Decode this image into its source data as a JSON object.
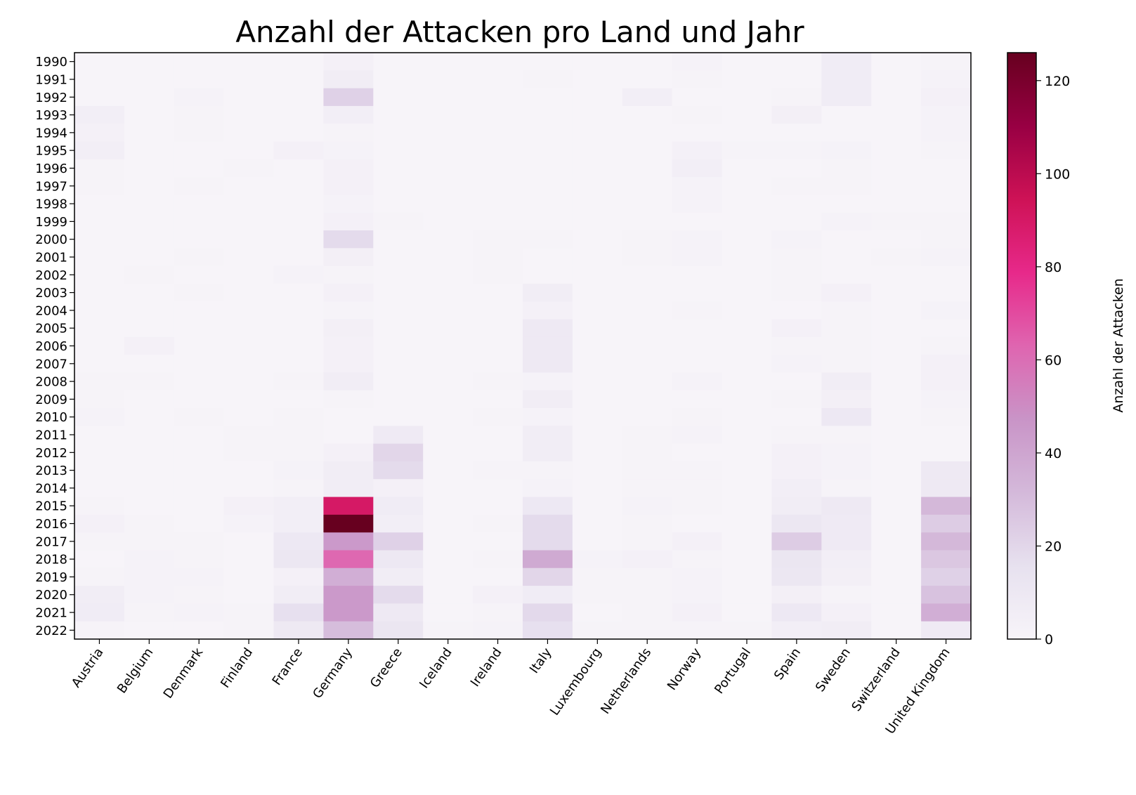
{
  "chart_data": {
    "type": "heatmap",
    "title": "Anzahl der Attacken pro Land und Jahr",
    "x_categories": [
      "Austria",
      "Belgium",
      "Denmark",
      "Finland",
      "France",
      "Germany",
      "Greece",
      "Iceland",
      "Ireland",
      "Italy",
      "Luxembourg",
      "Netherlands",
      "Norway",
      "Portugal",
      "Spain",
      "Sweden",
      "Switzerland",
      "United Kingdom"
    ],
    "y_categories": [
      "1990",
      "1991",
      "1992",
      "1993",
      "1994",
      "1995",
      "1996",
      "1997",
      "1998",
      "1999",
      "2000",
      "2001",
      "2002",
      "2003",
      "2004",
      "2005",
      "2006",
      "2007",
      "2008",
      "2009",
      "2010",
      "2011",
      "2012",
      "2013",
      "2014",
      "2015",
      "2016",
      "2017",
      "2018",
      "2019",
      "2020",
      "2021",
      "2022"
    ],
    "values": [
      [
        0,
        0,
        0,
        0,
        0,
        3,
        0,
        0,
        0,
        0,
        0,
        0,
        2,
        0,
        0,
        7,
        0,
        1
      ],
      [
        0,
        0,
        0,
        0,
        0,
        6,
        0,
        0,
        0,
        1,
        0,
        0,
        1,
        0,
        0,
        7,
        0,
        2
      ],
      [
        0,
        0,
        2,
        0,
        0,
        22,
        0,
        0,
        0,
        0,
        0,
        5,
        0,
        0,
        1,
        7,
        0,
        3
      ],
      [
        5,
        0,
        1,
        0,
        0,
        5,
        0,
        0,
        0,
        0,
        0,
        0,
        1,
        0,
        4,
        0,
        0,
        2
      ],
      [
        3,
        0,
        1,
        0,
        0,
        1,
        0,
        0,
        0,
        0,
        0,
        0,
        0,
        0,
        0,
        0,
        0,
        2
      ],
      [
        5,
        0,
        0,
        0,
        3,
        2,
        0,
        0,
        0,
        0,
        0,
        0,
        3,
        1,
        1,
        2,
        0,
        1
      ],
      [
        1,
        0,
        0,
        1,
        0,
        3,
        0,
        0,
        0,
        0,
        0,
        0,
        5,
        0,
        0,
        1,
        0,
        0
      ],
      [
        1,
        0,
        1,
        0,
        0,
        3,
        0,
        0,
        0,
        0,
        0,
        0,
        2,
        0,
        1,
        1,
        0,
        0
      ],
      [
        0,
        0,
        0,
        0,
        0,
        2,
        0,
        0,
        0,
        0,
        0,
        0,
        2,
        0,
        0,
        0,
        0,
        0
      ],
      [
        0,
        0,
        0,
        0,
        0,
        3,
        1,
        0,
        0,
        0,
        0,
        0,
        0,
        0,
        0,
        2,
        1,
        1
      ],
      [
        0,
        0,
        0,
        0,
        0,
        18,
        0,
        0,
        1,
        1,
        0,
        1,
        2,
        0,
        2,
        0,
        0,
        1
      ],
      [
        0,
        0,
        1,
        0,
        0,
        4,
        0,
        0,
        1,
        0,
        0,
        1,
        2,
        0,
        1,
        0,
        1,
        2
      ],
      [
        0,
        1,
        0,
        0,
        2,
        1,
        0,
        0,
        1,
        0,
        0,
        0,
        0,
        0,
        1,
        0,
        0,
        0
      ],
      [
        0,
        0,
        1,
        0,
        0,
        3,
        0,
        0,
        0,
        6,
        0,
        0,
        0,
        0,
        1,
        3,
        0,
        0
      ],
      [
        0,
        0,
        0,
        0,
        0,
        1,
        0,
        0,
        0,
        3,
        0,
        0,
        1,
        0,
        0,
        1,
        0,
        2
      ],
      [
        0,
        0,
        0,
        0,
        0,
        4,
        0,
        0,
        0,
        9,
        0,
        0,
        0,
        0,
        3,
        1,
        0,
        0
      ],
      [
        0,
        3,
        0,
        0,
        0,
        3,
        0,
        0,
        0,
        9,
        0,
        0,
        0,
        0,
        1,
        1,
        0,
        1
      ],
      [
        0,
        0,
        0,
        0,
        0,
        3,
        0,
        0,
        0,
        9,
        0,
        0,
        0,
        0,
        2,
        1,
        0,
        3
      ],
      [
        1,
        1,
        0,
        0,
        1,
        6,
        0,
        0,
        1,
        2,
        0,
        0,
        2,
        0,
        0,
        6,
        0,
        3
      ],
      [
        1,
        0,
        0,
        0,
        0,
        1,
        0,
        0,
        0,
        6,
        0,
        0,
        0,
        0,
        1,
        4,
        0,
        2
      ],
      [
        2,
        0,
        1,
        0,
        1,
        0,
        0,
        0,
        1,
        2,
        0,
        0,
        1,
        0,
        0,
        10,
        0,
        1
      ],
      [
        0,
        0,
        0,
        1,
        1,
        0,
        8,
        0,
        0,
        6,
        0,
        1,
        2,
        0,
        1,
        1,
        0,
        0
      ],
      [
        0,
        0,
        0,
        1,
        1,
        3,
        20,
        0,
        0,
        6,
        0,
        1,
        0,
        0,
        3,
        2,
        0,
        0
      ],
      [
        0,
        0,
        0,
        0,
        2,
        6,
        18,
        0,
        1,
        1,
        0,
        1,
        1,
        0,
        3,
        2,
        0,
        9
      ],
      [
        0,
        0,
        0,
        0,
        1,
        6,
        3,
        0,
        0,
        2,
        0,
        1,
        1,
        0,
        5,
        1,
        0,
        9
      ],
      [
        1,
        0,
        0,
        3,
        5,
        90,
        7,
        0,
        0,
        10,
        0,
        2,
        1,
        0,
        6,
        9,
        0,
        32
      ],
      [
        3,
        1,
        0,
        2,
        5,
        126,
        5,
        0,
        1,
        18,
        0,
        1,
        0,
        0,
        11,
        8,
        0,
        24
      ],
      [
        1,
        1,
        1,
        0,
        10,
        45,
        22,
        0,
        0,
        18,
        0,
        1,
        3,
        0,
        24,
        8,
        0,
        32
      ],
      [
        0,
        2,
        1,
        0,
        11,
        62,
        10,
        0,
        1,
        38,
        2,
        3,
        1,
        0,
        12,
        5,
        0,
        26
      ],
      [
        1,
        2,
        2,
        0,
        3,
        36,
        6,
        0,
        0,
        20,
        1,
        1,
        2,
        0,
        11,
        4,
        0,
        22
      ],
      [
        6,
        2,
        1,
        0,
        6,
        45,
        18,
        0,
        3,
        7,
        1,
        1,
        2,
        0,
        4,
        1,
        0,
        28
      ],
      [
        7,
        1,
        2,
        1,
        16,
        45,
        9,
        0,
        1,
        19,
        0,
        1,
        3,
        0,
        10,
        3,
        0,
        36
      ],
      [
        1,
        0,
        0,
        1,
        9,
        30,
        12,
        1,
        2,
        16,
        1,
        1,
        1,
        1,
        5,
        6,
        0,
        8
      ]
    ],
    "zlim": [
      0,
      126
    ],
    "colorbar": {
      "label": "Anzahl der Attacken",
      "ticks": [
        "0",
        "20",
        "40",
        "60",
        "80",
        "100",
        "120"
      ],
      "tick_values": [
        0,
        20,
        40,
        60,
        80,
        100,
        120
      ],
      "colormap": "PuRd",
      "stops": [
        "#f7f4f9",
        "#e7e1ef",
        "#d4b9da",
        "#c994c7",
        "#df65b0",
        "#e7298a",
        "#ce1256",
        "#980043",
        "#67001f"
      ]
    }
  }
}
